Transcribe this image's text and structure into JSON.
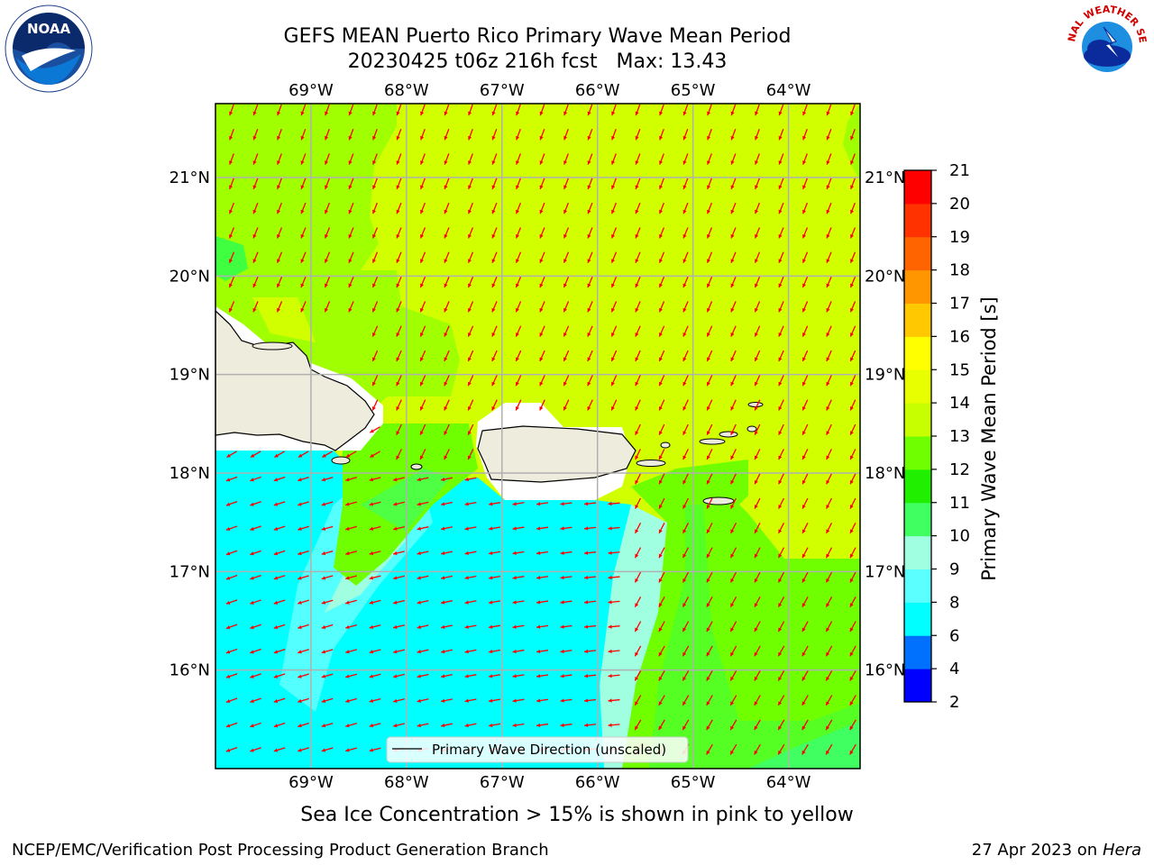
{
  "title_line1": "GEFS MEAN Puerto Rico Primary Wave Mean Period",
  "title_line2": "20230425 t06z 216h fcst   Max: 13.43",
  "footer_note": "Sea Ice Concentration > 15% is shown in pink to yellow",
  "credit_left": "NCEP/EMC/Verification Post Processing Product Generation Branch",
  "credit_right_date": "27 Apr 2023 on ",
  "credit_right_host": "Hera",
  "legend_label": "Primary Wave Direction (unscaled)",
  "colorbar": {
    "label": "Primary Wave Mean Period [s]",
    "ticks": [
      "2",
      "4",
      "6",
      "8",
      "9",
      "10",
      "11",
      "12",
      "13",
      "14",
      "15",
      "16",
      "17",
      "18",
      "19",
      "20",
      "21"
    ],
    "colors": [
      "#0000ff",
      "#0070ff",
      "#00ffff",
      "#5cffff",
      "#a0ffe0",
      "#40ff60",
      "#20f000",
      "#70ff00",
      "#c8ff00",
      "#e8ff00",
      "#ffff00",
      "#ffc800",
      "#ff9600",
      "#ff6400",
      "#ff3200",
      "#ff0000"
    ]
  },
  "map": {
    "lon_labels": [
      "69°W",
      "68°W",
      "67°W",
      "66°W",
      "65°W",
      "64°W"
    ],
    "lat_labels": [
      "21°N",
      "20°N",
      "19°N",
      "18°N",
      "17°N",
      "16°N"
    ],
    "lon_values": [
      -69,
      -68,
      -67,
      -66,
      -65,
      -64
    ],
    "lat_values": [
      21,
      20,
      19,
      18,
      17,
      16
    ],
    "lon_range": [
      -70.0,
      -63.25
    ],
    "lat_range": [
      15.0,
      21.75
    ],
    "arrow_color": "#ff0000",
    "land_color": "#eeecdc"
  },
  "logos": {
    "noaa_text": "NOAA",
    "nws_text": "NATIONAL WEATHER SERVICE"
  }
}
